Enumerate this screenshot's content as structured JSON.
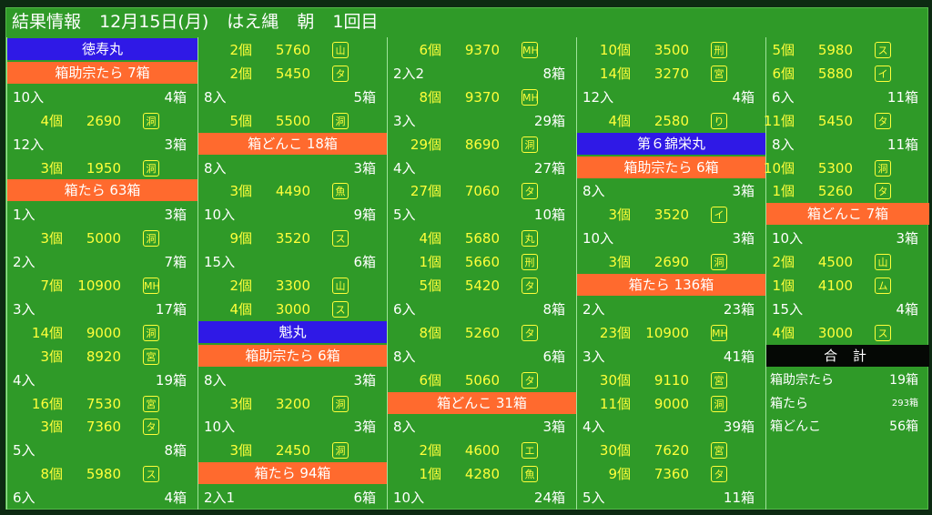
{
  "header": {
    "title": "結果情報",
    "date": "12月15日(月)",
    "market": "はえ縄",
    "session": "朝",
    "round": "1回目"
  },
  "columns": [
    [
      {
        "t": "ship",
        "label": "徳寿丸"
      },
      {
        "t": "cat",
        "label": "箱助宗たら 7箱"
      },
      {
        "t": "size",
        "left": "10入",
        "right": "4箱"
      },
      {
        "t": "bid",
        "q": "4個",
        "p": "2690",
        "m": "洞"
      },
      {
        "t": "size",
        "left": "12入",
        "right": "3箱"
      },
      {
        "t": "bid",
        "q": "3個",
        "p": "1950",
        "m": "洞"
      },
      {
        "t": "cat",
        "label": "箱たら 63箱"
      },
      {
        "t": "size",
        "left": "1入",
        "right": "3箱"
      },
      {
        "t": "bid",
        "q": "3個",
        "p": "5000",
        "m": "洞"
      },
      {
        "t": "size",
        "left": "2入",
        "right": "7箱"
      },
      {
        "t": "bid",
        "q": "7個",
        "p": "10900",
        "m": "MH"
      },
      {
        "t": "size",
        "left": "3入",
        "right": "17箱"
      },
      {
        "t": "bid",
        "q": "14個",
        "p": "9000",
        "m": "洞"
      },
      {
        "t": "bid",
        "q": "3個",
        "p": "8920",
        "m": "宮"
      },
      {
        "t": "size",
        "left": "4入",
        "right": "19箱"
      },
      {
        "t": "bid",
        "q": "16個",
        "p": "7530",
        "m": "宮"
      },
      {
        "t": "bid",
        "q": "3個",
        "p": "7360",
        "m": "タ"
      },
      {
        "t": "size",
        "left": "5入",
        "right": "8箱"
      },
      {
        "t": "bid",
        "q": "8個",
        "p": "5980",
        "m": "ス"
      },
      {
        "t": "size",
        "left": "6入",
        "right": "4箱"
      }
    ],
    [
      {
        "t": "bid",
        "q": "2個",
        "p": "5760",
        "m": "山"
      },
      {
        "t": "bid",
        "q": "2個",
        "p": "5450",
        "m": "タ"
      },
      {
        "t": "size",
        "left": "8入",
        "right": "5箱"
      },
      {
        "t": "bid",
        "q": "5個",
        "p": "5500",
        "m": "洞"
      },
      {
        "t": "cat",
        "label": "箱どんこ 18箱"
      },
      {
        "t": "size",
        "left": "8入",
        "right": "3箱"
      },
      {
        "t": "bid",
        "q": "3個",
        "p": "4490",
        "m": "魚"
      },
      {
        "t": "size",
        "left": "10入",
        "right": "9箱"
      },
      {
        "t": "bid",
        "q": "9個",
        "p": "3520",
        "m": "ス"
      },
      {
        "t": "size",
        "left": "15入",
        "right": "6箱"
      },
      {
        "t": "bid",
        "q": "2個",
        "p": "3300",
        "m": "山"
      },
      {
        "t": "bid",
        "q": "4個",
        "p": "3000",
        "m": "ス"
      },
      {
        "t": "ship",
        "label": "魁丸"
      },
      {
        "t": "cat",
        "label": "箱助宗たら 6箱"
      },
      {
        "t": "size",
        "left": "8入",
        "right": "3箱"
      },
      {
        "t": "bid",
        "q": "3個",
        "p": "3200",
        "m": "洞"
      },
      {
        "t": "size",
        "left": "10入",
        "right": "3箱"
      },
      {
        "t": "bid",
        "q": "3個",
        "p": "2450",
        "m": "洞"
      },
      {
        "t": "cat",
        "label": "箱たら 94箱"
      },
      {
        "t": "size",
        "left": "2入1",
        "right": "6箱"
      }
    ],
    [
      {
        "t": "bid",
        "q": "6個",
        "p": "9370",
        "m": "MH"
      },
      {
        "t": "size",
        "left": "2入2",
        "right": "8箱"
      },
      {
        "t": "bid",
        "q": "8個",
        "p": "9370",
        "m": "MH"
      },
      {
        "t": "size",
        "left": "3入",
        "right": "29箱"
      },
      {
        "t": "bid",
        "q": "29個",
        "p": "8690",
        "m": "洞"
      },
      {
        "t": "size",
        "left": "4入",
        "right": "27箱"
      },
      {
        "t": "bid",
        "q": "27個",
        "p": "7060",
        "m": "タ"
      },
      {
        "t": "size",
        "left": "5入",
        "right": "10箱"
      },
      {
        "t": "bid",
        "q": "4個",
        "p": "5680",
        "m": "丸"
      },
      {
        "t": "bid",
        "q": "1個",
        "p": "5660",
        "m": "刑"
      },
      {
        "t": "bid",
        "q": "5個",
        "p": "5420",
        "m": "タ"
      },
      {
        "t": "size",
        "left": "6入",
        "right": "8箱"
      },
      {
        "t": "bid",
        "q": "8個",
        "p": "5260",
        "m": "タ"
      },
      {
        "t": "size",
        "left": "8入",
        "right": "6箱"
      },
      {
        "t": "bid",
        "q": "6個",
        "p": "5060",
        "m": "タ"
      },
      {
        "t": "cat",
        "label": "箱どんこ 31箱"
      },
      {
        "t": "size",
        "left": "8入",
        "right": "3箱"
      },
      {
        "t": "bid",
        "q": "2個",
        "p": "4600",
        "m": "エ"
      },
      {
        "t": "bid",
        "q": "1個",
        "p": "4280",
        "m": "魚"
      },
      {
        "t": "size",
        "left": "10入",
        "right": "24箱"
      }
    ],
    [
      {
        "t": "bid",
        "q": "10個",
        "p": "3500",
        "m": "刑"
      },
      {
        "t": "bid",
        "q": "14個",
        "p": "3270",
        "m": "宮"
      },
      {
        "t": "size",
        "left": "12入",
        "right": "4箱"
      },
      {
        "t": "bid",
        "q": "4個",
        "p": "2580",
        "m": "り"
      },
      {
        "t": "ship",
        "label": "第６錦栄丸"
      },
      {
        "t": "cat",
        "label": "箱助宗たら 6箱"
      },
      {
        "t": "size",
        "left": "8入",
        "right": "3箱"
      },
      {
        "t": "bid",
        "q": "3個",
        "p": "3520",
        "m": "イ"
      },
      {
        "t": "size",
        "left": "10入",
        "right": "3箱"
      },
      {
        "t": "bid",
        "q": "3個",
        "p": "2690",
        "m": "洞"
      },
      {
        "t": "cat",
        "label": "箱たら 136箱"
      },
      {
        "t": "size",
        "left": "2入",
        "right": "23箱"
      },
      {
        "t": "bid",
        "q": "23個",
        "p": "10900",
        "m": "MH"
      },
      {
        "t": "size",
        "left": "3入",
        "right": "41箱"
      },
      {
        "t": "bid",
        "q": "30個",
        "p": "9110",
        "m": "宮"
      },
      {
        "t": "bid",
        "q": "11個",
        "p": "9000",
        "m": "洞"
      },
      {
        "t": "size",
        "left": "4入",
        "right": "39箱"
      },
      {
        "t": "bid",
        "q": "30個",
        "p": "7620",
        "m": "宮"
      },
      {
        "t": "bid",
        "q": "9個",
        "p": "7360",
        "m": "タ"
      },
      {
        "t": "size",
        "left": "5入",
        "right": "11箱"
      }
    ],
    [
      {
        "t": "bid",
        "q": "5個",
        "p": "5980",
        "m": "ス"
      },
      {
        "t": "bid",
        "q": "6個",
        "p": "5880",
        "m": "イ"
      },
      {
        "t": "size",
        "left": "6入",
        "right": "11箱"
      },
      {
        "t": "bid",
        "q": "11個",
        "p": "5450",
        "m": "タ"
      },
      {
        "t": "size",
        "left": "8入",
        "right": "11箱"
      },
      {
        "t": "bid",
        "q": "10個",
        "p": "5300",
        "m": "洞"
      },
      {
        "t": "bid",
        "q": "1個",
        "p": "5260",
        "m": "タ"
      },
      {
        "t": "cat",
        "label": "箱どんこ 7箱"
      },
      {
        "t": "size",
        "left": "10入",
        "right": "3箱"
      },
      {
        "t": "bid",
        "q": "2個",
        "p": "4500",
        "m": "山"
      },
      {
        "t": "bid",
        "q": "1個",
        "p": "4100",
        "m": "ム"
      },
      {
        "t": "size",
        "left": "15入",
        "right": "4箱"
      },
      {
        "t": "bid",
        "q": "4個",
        "p": "3000",
        "m": "ス"
      },
      {
        "t": "total",
        "label": "合 計"
      },
      {
        "t": "tot",
        "left": "箱助宗たら",
        "right": "19箱"
      },
      {
        "t": "tot",
        "left": "箱たら",
        "right": "293箱",
        "small": true
      },
      {
        "t": "tot",
        "left": "箱どんこ",
        "right": "56箱"
      }
    ]
  ]
}
